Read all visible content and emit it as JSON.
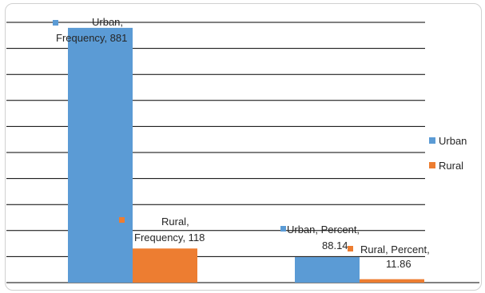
{
  "chart_data": {
    "type": "bar",
    "categories": [
      "Frequency",
      "Percent"
    ],
    "series": [
      {
        "name": "Urban",
        "values": [
          881,
          88.14
        ]
      },
      {
        "name": "Rural",
        "values": [
          118,
          11.86
        ]
      }
    ],
    "ylim": [
      0,
      900
    ],
    "grid": true,
    "legend": "right",
    "colors": {
      "Urban": "#5b9bd5",
      "Rural": "#ed7d31"
    },
    "data_labels": [
      [
        "Urban,",
        "Frequency, 881"
      ],
      [
        "Rural,",
        "Frequency, 118"
      ],
      [
        "Urban, Percent,",
        "88.14"
      ],
      [
        "Rural, Percent,",
        "11.86"
      ]
    ]
  }
}
